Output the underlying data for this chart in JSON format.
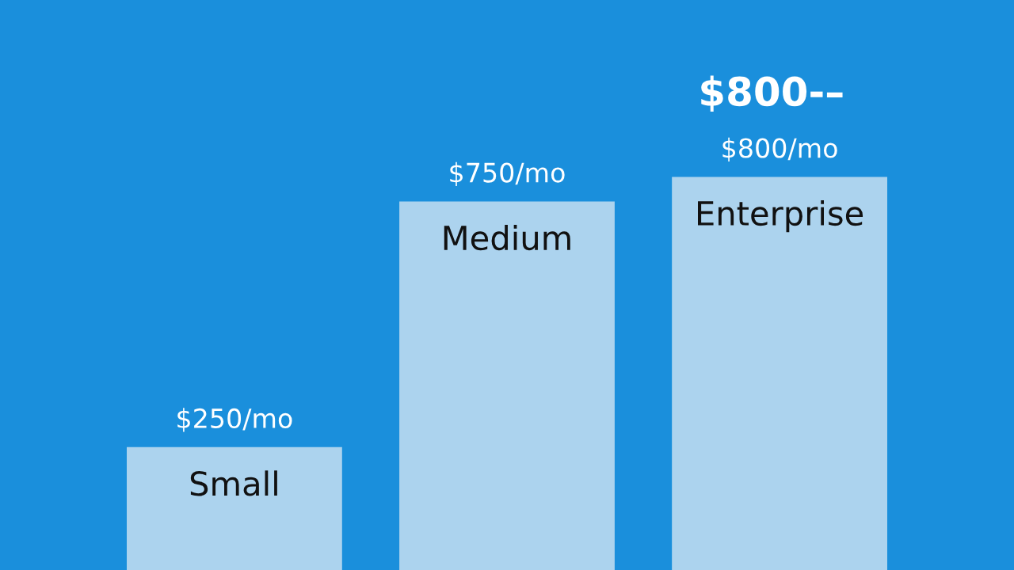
{
  "chart_data": {
    "type": "bar",
    "categories": [
      "Small",
      "Medium",
      "Enterprise"
    ],
    "values": [
      250,
      750,
      800
    ],
    "value_labels": [
      "$250/mo",
      "$750/mo",
      "$800/mo"
    ],
    "color": "#acd3ee",
    "annotations": [
      "$800-–"
    ]
  }
}
